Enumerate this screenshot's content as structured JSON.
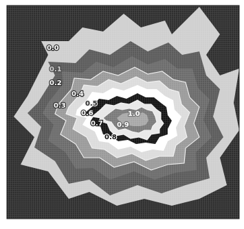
{
  "chart_data": {
    "type": "heatmap",
    "subtype": "filled-contour",
    "colormap": "grayscale",
    "levels": [
      0.0,
      0.1,
      0.2,
      0.3,
      0.4,
      0.5,
      0.6,
      0.7,
      0.8,
      0.9,
      1.0
    ],
    "contour_labels": [
      {
        "text": "0.0",
        "level": 0.0
      },
      {
        "text": "0.1",
        "level": 0.1
      },
      {
        "text": "0.2",
        "level": 0.2
      },
      {
        "text": "0.3",
        "level": 0.3
      },
      {
        "text": "0.4",
        "level": 0.4
      },
      {
        "text": "0.5",
        "level": 0.5
      },
      {
        "text": "0.6",
        "level": 0.6
      },
      {
        "text": "0.7",
        "level": 0.7
      },
      {
        "text": "0.8",
        "level": 0.8
      },
      {
        "text": "0.9",
        "level": 0.9
      },
      {
        "text": "1.0",
        "level": 1.0
      }
    ],
    "peak_value": 1.0,
    "grid": false,
    "axes": false
  }
}
